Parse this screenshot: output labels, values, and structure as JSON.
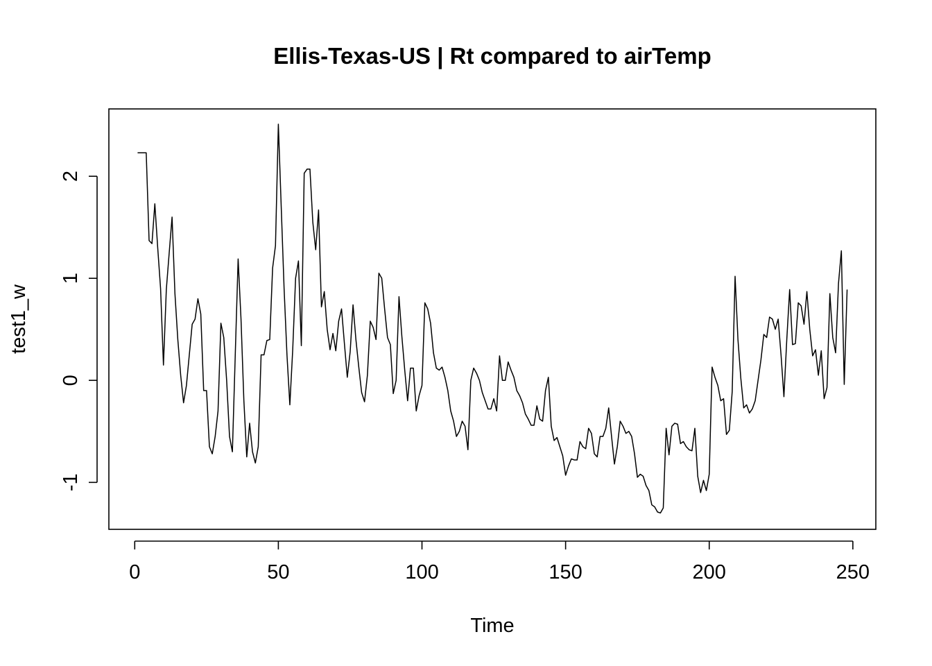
{
  "chart_data": {
    "type": "line",
    "title": "Ellis-Texas-US | Rt compared to airTemp",
    "xlabel": "Time",
    "ylabel": "test1_w",
    "xlim": [
      -9,
      258
    ],
    "ylim": [
      -1.46,
      2.66
    ],
    "x_ticks": [
      0,
      50,
      100,
      150,
      200,
      250
    ],
    "y_ticks": [
      -1,
      0,
      1,
      2
    ],
    "grid": false,
    "legend": "none",
    "series": [
      {
        "color": "#000000",
        "x": [
          1,
          2,
          3,
          4,
          5,
          6,
          7,
          8,
          9,
          10,
          11,
          12,
          13,
          14,
          15,
          16,
          17,
          18,
          19,
          20,
          21,
          22,
          23,
          24,
          25,
          26,
          27,
          28,
          29,
          30,
          31,
          32,
          33,
          34,
          35,
          36,
          37,
          38,
          39,
          40,
          41,
          42,
          43,
          44,
          45,
          46,
          47,
          48,
          49,
          50,
          51,
          52,
          53,
          54,
          55,
          56,
          57,
          58,
          59,
          60,
          61,
          62,
          63,
          64,
          65,
          66,
          67,
          68,
          69,
          70,
          71,
          72,
          73,
          74,
          75,
          76,
          77,
          78,
          79,
          80,
          81,
          82,
          83,
          84,
          85,
          86,
          87,
          88,
          89,
          90,
          91,
          92,
          93,
          94,
          95,
          96,
          97,
          98,
          99,
          100,
          101,
          102,
          103,
          104,
          105,
          106,
          107,
          108,
          109,
          110,
          111,
          112,
          113,
          114,
          115,
          116,
          117,
          118,
          119,
          120,
          121,
          122,
          123,
          124,
          125,
          126,
          127,
          128,
          129,
          130,
          131,
          132,
          133,
          134,
          135,
          136,
          137,
          138,
          139,
          140,
          141,
          142,
          143,
          144,
          145,
          146,
          147,
          148,
          149,
          150,
          151,
          152,
          153,
          154,
          155,
          156,
          157,
          158,
          159,
          160,
          161,
          162,
          163,
          164,
          165,
          166,
          167,
          168,
          169,
          170,
          171,
          172,
          173,
          174,
          175,
          176,
          177,
          178,
          179,
          180,
          181,
          182,
          183,
          184,
          185,
          186,
          187,
          188,
          189,
          190,
          191,
          192,
          193,
          194,
          195,
          196,
          197,
          198,
          199,
          200,
          201,
          202,
          203,
          204,
          205,
          206,
          207,
          208,
          209,
          210,
          211,
          212,
          213,
          214,
          215,
          216,
          217,
          218,
          219,
          220,
          221,
          222,
          223,
          224,
          225,
          226,
          227,
          228,
          229,
          230,
          231,
          232,
          233,
          234,
          235,
          236,
          237,
          238,
          239,
          240,
          241,
          242,
          243,
          244,
          245,
          246,
          247,
          248
        ],
        "y": [
          2.23,
          2.23,
          2.23,
          2.23,
          1.37,
          1.34,
          1.73,
          1.3,
          0.9,
          0.15,
          0.89,
          1.25,
          1.6,
          0.85,
          0.4,
          0.05,
          -0.22,
          -0.05,
          0.25,
          0.55,
          0.6,
          0.8,
          0.65,
          -0.1,
          -0.1,
          -0.65,
          -0.72,
          -0.55,
          -0.3,
          0.56,
          0.42,
          0.0,
          -0.55,
          -0.7,
          0.25,
          1.19,
          0.6,
          -0.2,
          -0.75,
          -0.42,
          -0.7,
          -0.81,
          -0.65,
          0.25,
          0.25,
          0.39,
          0.4,
          1.1,
          1.32,
          2.51,
          1.7,
          0.9,
          0.25,
          -0.24,
          0.3,
          1.0,
          1.17,
          0.34,
          2.03,
          2.07,
          2.07,
          1.55,
          1.28,
          1.67,
          0.72,
          0.87,
          0.5,
          0.3,
          0.46,
          0.29,
          0.58,
          0.7,
          0.36,
          0.03,
          0.28,
          0.74,
          0.4,
          0.13,
          -0.12,
          -0.21,
          0.05,
          0.58,
          0.52,
          0.4,
          1.05,
          1.0,
          0.7,
          0.42,
          0.35,
          -0.13,
          0.0,
          0.82,
          0.43,
          0.1,
          -0.2,
          0.12,
          0.12,
          -0.3,
          -0.15,
          -0.05,
          0.76,
          0.7,
          0.56,
          0.27,
          0.12,
          0.1,
          0.13,
          0.03,
          -0.1,
          -0.3,
          -0.4,
          -0.55,
          -0.5,
          -0.4,
          -0.45,
          -0.68,
          0.0,
          0.12,
          0.07,
          0.0,
          -0.12,
          -0.2,
          -0.28,
          -0.28,
          -0.18,
          -0.3,
          0.24,
          0.0,
          0.0,
          0.18,
          0.1,
          0.03,
          -0.1,
          -0.15,
          -0.22,
          -0.33,
          -0.38,
          -0.44,
          -0.44,
          -0.25,
          -0.38,
          -0.4,
          -0.1,
          0.03,
          -0.45,
          -0.59,
          -0.56,
          -0.65,
          -0.74,
          -0.93,
          -0.84,
          -0.77,
          -0.78,
          -0.78,
          -0.6,
          -0.65,
          -0.67,
          -0.47,
          -0.52,
          -0.72,
          -0.75,
          -0.55,
          -0.55,
          -0.47,
          -0.27,
          -0.55,
          -0.82,
          -0.65,
          -0.4,
          -0.45,
          -0.52,
          -0.5,
          -0.55,
          -0.72,
          -0.95,
          -0.92,
          -0.94,
          -1.03,
          -1.08,
          -1.22,
          -1.24,
          -1.29,
          -1.3,
          -1.25,
          -0.47,
          -0.73,
          -0.45,
          -0.42,
          -0.43,
          -0.62,
          -0.6,
          -0.65,
          -0.68,
          -0.69,
          -0.47,
          -0.94,
          -1.1,
          -0.98,
          -1.08,
          -0.92,
          0.13,
          0.03,
          -0.05,
          -0.2,
          -0.18,
          -0.53,
          -0.49,
          -0.11,
          1.02,
          0.4,
          0.02,
          -0.27,
          -0.24,
          -0.32,
          -0.28,
          -0.2,
          0.0,
          0.2,
          0.45,
          0.42,
          0.62,
          0.6,
          0.5,
          0.6,
          0.25,
          -0.16,
          0.4,
          0.89,
          0.35,
          0.36,
          0.76,
          0.73,
          0.55,
          0.87,
          0.5,
          0.24,
          0.3,
          0.05,
          0.29,
          -0.18,
          -0.07,
          0.85,
          0.42,
          0.27,
          0.95,
          1.27,
          -0.04,
          0.89
        ]
      }
    ]
  }
}
